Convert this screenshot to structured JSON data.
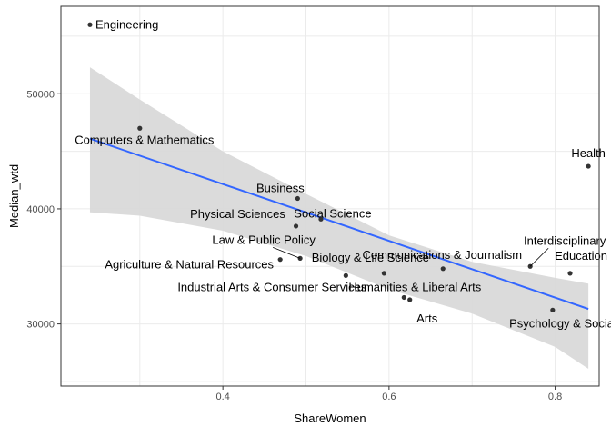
{
  "chart_data": {
    "type": "scatter",
    "title": "",
    "xlabel": "ShareWomen",
    "ylabel": "Median_wtd",
    "xlim": [
      0.205,
      0.853
    ],
    "ylim": [
      24600,
      57600
    ],
    "x_ticks": [
      0.4,
      0.6,
      0.8
    ],
    "x_tick_labels": [
      "0.4",
      "0.6",
      "0.8"
    ],
    "y_ticks": [
      30000,
      40000,
      50000
    ],
    "y_tick_labels": [
      "30000",
      "40000",
      "50000"
    ],
    "grid": true,
    "legend": "none",
    "colors": {
      "background": "#ffffff",
      "grid": "#ebebeb",
      "panel_border": "#333333",
      "point": "#333333",
      "trend_line": "#3366ff",
      "confidence_band": "#d9d9d9"
    },
    "series": [
      {
        "points": [
          {
            "label": "Engineering",
            "x": 0.24,
            "y": 56000
          },
          {
            "label": "Computers & Mathematics",
            "x": 0.3,
            "y": 47000
          },
          {
            "label": "Health",
            "x": 0.84,
            "y": 43700
          },
          {
            "label": "Business",
            "x": 0.49,
            "y": 40900
          },
          {
            "label": "Social Science",
            "x": 0.518,
            "y": 39100
          },
          {
            "label": "Physical Sciences",
            "x": 0.488,
            "y": 38500
          },
          {
            "label": "Interdisciplinary",
            "x": 0.77,
            "y": 35000
          },
          {
            "label": "Law & Public Policy",
            "x": 0.493,
            "y": 35700
          },
          {
            "label": "Agriculture & Natural Resources",
            "x": 0.469,
            "y": 35600
          },
          {
            "label": "Communications & Journalism",
            "x": 0.665,
            "y": 34800
          },
          {
            "label": "Biology & Life Science",
            "x": 0.594,
            "y": 34400
          },
          {
            "label": "Industrial Arts & Consumer Services",
            "x": 0.548,
            "y": 34200
          },
          {
            "label": "Education",
            "x": 0.818,
            "y": 34400
          },
          {
            "label": "Humanities & Liberal Arts",
            "x": 0.618,
            "y": 32300
          },
          {
            "label": "Arts",
            "x": 0.625,
            "y": 32100
          },
          {
            "label": "Psychology & Social Work",
            "x": 0.797,
            "y": 31200
          }
        ]
      }
    ],
    "trend": {
      "method": "linear",
      "x": [
        0.24,
        0.84
      ],
      "y": [
        46100,
        31300
      ],
      "band": {
        "x": [
          0.24,
          0.3,
          0.4,
          0.5,
          0.6,
          0.7,
          0.8,
          0.84
        ],
        "upper": [
          52300,
          49500,
          45000,
          41300,
          37700,
          35400,
          34000,
          33500
        ],
        "lower": [
          39700,
          39400,
          38100,
          35900,
          33000,
          30900,
          28000,
          26100
        ]
      }
    }
  }
}
